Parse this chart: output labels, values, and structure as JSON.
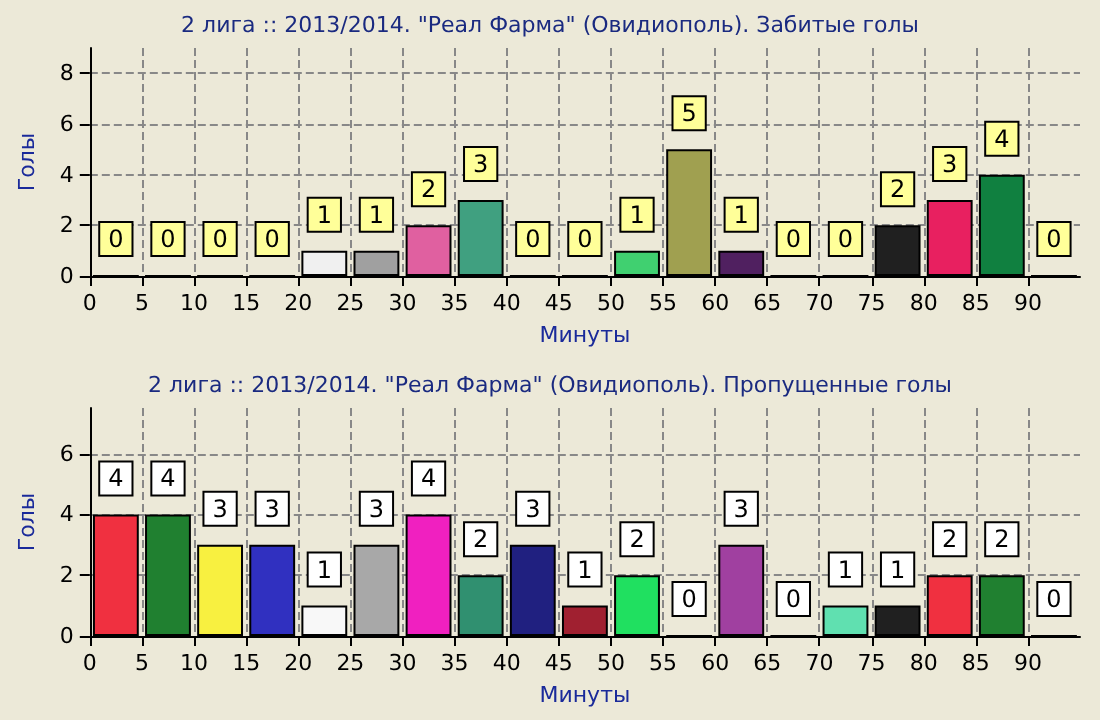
{
  "chart_data": [
    {
      "type": "bar",
      "title": "2 лига :: 2013/2014. \"Реал Фарма\" (Овидиополь). Забитые голы",
      "xlabel": "Минуты",
      "ylabel": "Голы",
      "x": [
        2.5,
        7.5,
        12.5,
        17.5,
        22.5,
        27.5,
        32.5,
        37.5,
        42.5,
        47.5,
        52.5,
        57.5,
        62.5,
        67.5,
        72.5,
        77.5,
        82.5,
        87.5,
        92.5
      ],
      "values": [
        0,
        0,
        0,
        0,
        1,
        1,
        2,
        3,
        0,
        0,
        1,
        5,
        1,
        0,
        0,
        2,
        3,
        4,
        0
      ],
      "colors": [
        "#c8103c",
        "#0a4a1a",
        "#b8b840",
        "#101070",
        "#f0f0f0",
        "#a0a0a0",
        "#e060a0",
        "#40a080",
        "#181850",
        "#400808",
        "#40d070",
        "#a0a050",
        "#502060",
        "#808080",
        "#20c0a0",
        "#202020",
        "#e82060",
        "#108040",
        "#c8c840"
      ],
      "xlim": [
        0,
        95
      ],
      "xticks": [
        0,
        5,
        10,
        15,
        20,
        25,
        30,
        35,
        40,
        45,
        50,
        55,
        60,
        65,
        70,
        75,
        80,
        85,
        90
      ],
      "ylim": [
        0,
        9
      ],
      "yticks": [
        0,
        2,
        4,
        6,
        8
      ],
      "grid": true,
      "data_labels": true
    },
    {
      "type": "bar",
      "title": "2 лига :: 2013/2014. \"Реал Фарма\" (Овидиополь). Пропущенные голы",
      "xlabel": "Минуты",
      "ylabel": "Голы",
      "x": [
        2.5,
        7.5,
        12.5,
        17.5,
        22.5,
        27.5,
        32.5,
        37.5,
        42.5,
        47.5,
        52.5,
        57.5,
        62.5,
        67.5,
        72.5,
        77.5,
        82.5,
        87.5,
        92.5
      ],
      "values": [
        4,
        4,
        3,
        3,
        1,
        3,
        4,
        2,
        3,
        1,
        2,
        0,
        3,
        0,
        1,
        1,
        2,
        2,
        0
      ],
      "colors": [
        "#f03040",
        "#208030",
        "#f8f040",
        "#3030c0",
        "#f8f8f8",
        "#a8a8a8",
        "#f020c0",
        "#309070",
        "#202080",
        "#a02030",
        "#20e060",
        "#404030",
        "#a040a0",
        "#808080",
        "#60e0b0",
        "#202020",
        "#f03040",
        "#208030",
        "#c8c840"
      ],
      "xlim": [
        0,
        95
      ],
      "xticks": [
        0,
        5,
        10,
        15,
        20,
        25,
        30,
        35,
        40,
        45,
        50,
        55,
        60,
        65,
        70,
        75,
        80,
        85,
        90
      ],
      "ylim": [
        0,
        7.5
      ],
      "yticks": [
        0,
        2,
        4,
        6
      ],
      "grid": true,
      "data_labels": true
    }
  ]
}
